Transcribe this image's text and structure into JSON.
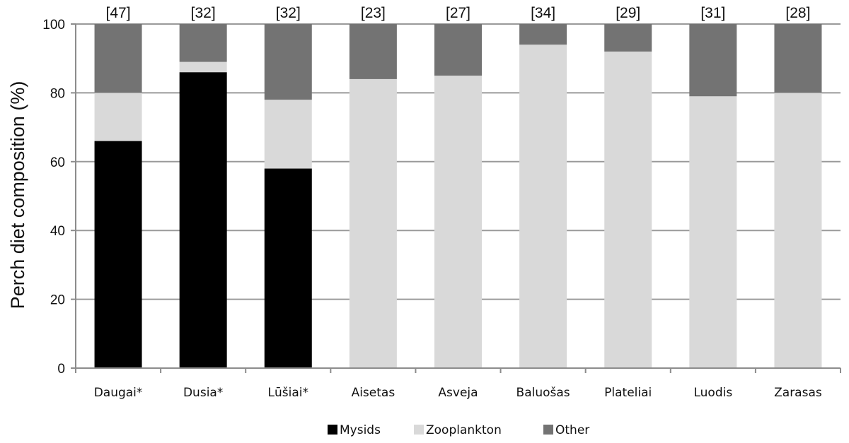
{
  "chart_data": {
    "type": "bar",
    "stacked": true,
    "ylabel": "Perch diet composition (%)",
    "xlabel": "",
    "ylim": [
      0,
      100
    ],
    "yticks": [
      "0",
      "20",
      "40",
      "60",
      "80",
      "100"
    ],
    "categories": [
      "Daugai*",
      "Dusia*",
      "Lūšiai*",
      "Aisetas",
      "Asveja",
      "Baluošas",
      "Plateliai",
      "Luodis",
      "Zarasas"
    ],
    "sample_sizes": [
      "[47]",
      "[32]",
      "[32]",
      "[23]",
      "[27]",
      "[34]",
      "[29]",
      "[31]",
      "[28]"
    ],
    "series": [
      {
        "name": "Mysids",
        "color": "#000000",
        "values": [
          66,
          86,
          58,
          0,
          0,
          0,
          0,
          0,
          0
        ]
      },
      {
        "name": "Zooplankton",
        "color": "#d9d9d9",
        "values": [
          14,
          3,
          20,
          84,
          85,
          94,
          92,
          79,
          80
        ]
      },
      {
        "name": "Other",
        "color": "#737373",
        "values": [
          20,
          11,
          22,
          16,
          15,
          6,
          8,
          21,
          20
        ]
      }
    ],
    "grid": true,
    "legend_position": "bottom-center"
  }
}
